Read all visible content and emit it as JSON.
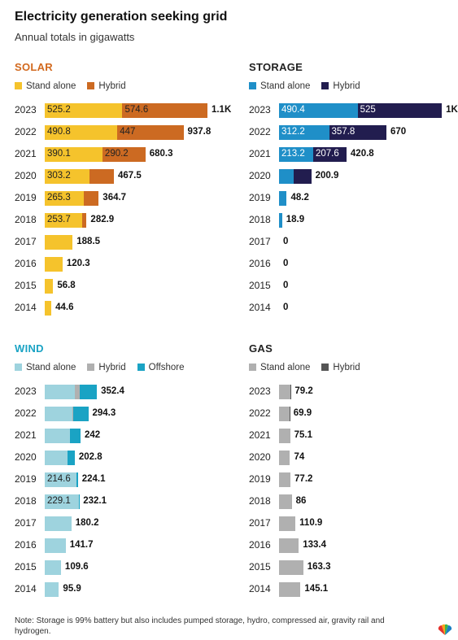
{
  "title": "Electricity generation seeking grid",
  "subtitle": "Annual totals in gigawatts",
  "note": "Note: Storage is 99% battery but also includes pumped storage, hydro, compressed air, gravity rail and hydrogen.",
  "logo_icon": "peacock-logo-icon",
  "chart_data": [
    {
      "type": "bar",
      "title": "SOLAR",
      "title_color": "#d2691e",
      "orientation": "horizontal",
      "stacked": true,
      "categories": [
        "2023",
        "2022",
        "2021",
        "2020",
        "2019",
        "2018",
        "2017",
        "2016",
        "2015",
        "2014"
      ],
      "series": [
        {
          "name": "Stand alone",
          "color": "#f5c32c",
          "values": [
            525.2,
            490.8,
            390.1,
            303.2,
            265.3,
            253.7,
            188.5,
            120.3,
            56.8,
            44.6
          ],
          "labels": [
            "525.2",
            "490.8",
            "390.1",
            "303.2",
            "265.3",
            "253.7",
            "",
            "",
            "",
            ""
          ]
        },
        {
          "name": "Hybrid",
          "color": "#cc6a22",
          "values": [
            574.6,
            447,
            290.2,
            164.3,
            99.4,
            29.2,
            0,
            0,
            0,
            0
          ],
          "labels": [
            "574.6",
            "447",
            "290.2",
            "",
            "",
            "",
            "",
            "",
            "",
            ""
          ]
        }
      ],
      "totals": [
        "1.1K",
        "937.8",
        "680.3",
        "467.5",
        "364.7",
        "282.9",
        "188.5",
        "120.3",
        "56.8",
        "44.6"
      ],
      "xlim": [
        0,
        1100
      ]
    },
    {
      "type": "bar",
      "title": "STORAGE",
      "title_color": "#222222",
      "orientation": "horizontal",
      "stacked": true,
      "categories": [
        "2023",
        "2022",
        "2021",
        "2020",
        "2019",
        "2018",
        "2017",
        "2016",
        "2015",
        "2014"
      ],
      "series": [
        {
          "name": "Stand alone",
          "color": "#1f8fc8",
          "values": [
            490.4,
            312.2,
            213.2,
            90,
            48.2,
            18.9,
            0,
            0,
            0,
            0
          ],
          "labels": [
            "490.4",
            "312.2",
            "213.2",
            "",
            "",
            "",
            "",
            "",
            "",
            ""
          ]
        },
        {
          "name": "Hybrid",
          "color": "#221d4f",
          "values": [
            525,
            357.8,
            207.6,
            110.9,
            0,
            0,
            0,
            0,
            0,
            0
          ],
          "labels": [
            "525",
            "357.8",
            "207.6",
            "",
            "",
            "",
            "",
            "",
            "",
            ""
          ]
        }
      ],
      "totals": [
        "1K",
        "670",
        "420.8",
        "200.9",
        "48.2",
        "18.9",
        "0",
        "0",
        "0",
        "0"
      ],
      "xlim": [
        0,
        1015
      ]
    },
    {
      "type": "bar",
      "title": "WIND",
      "title_color": "#1aa3c4",
      "orientation": "horizontal",
      "stacked": true,
      "categories": [
        "2023",
        "2022",
        "2021",
        "2020",
        "2019",
        "2018",
        "2017",
        "2016",
        "2015",
        "2014"
      ],
      "series": [
        {
          "name": "Stand alone",
          "color": "#9ed3de",
          "values": [
            205,
            189,
            172,
            156,
            214.6,
            229.1,
            180.2,
            141.7,
            109.6,
            95.9
          ],
          "labels": [
            "",
            "",
            "",
            "",
            "214.6",
            "229.1",
            "",
            "",
            "",
            ""
          ]
        },
        {
          "name": "Hybrid",
          "color": "#b0b0b0",
          "values": [
            32,
            6,
            0,
            0,
            0,
            0,
            0,
            0,
            0,
            0
          ],
          "labels": [
            "",
            "",
            "",
            "",
            "",
            "",
            "",
            "",
            "",
            ""
          ]
        },
        {
          "name": "Offshore",
          "color": "#1aa3c4",
          "values": [
            115.4,
            99.3,
            70,
            46.8,
            9.5,
            3,
            0,
            0,
            0,
            0
          ],
          "labels": [
            "",
            "",
            "",
            "",
            "",
            "",
            "",
            "",
            "",
            ""
          ]
        }
      ],
      "totals": [
        "352.4",
        "294.3",
        "242",
        "202.8",
        "224.1",
        "232.1",
        "180.2",
        "141.7",
        "109.6",
        "95.9"
      ],
      "xlim": [
        0,
        1100
      ]
    },
    {
      "type": "bar",
      "title": "GAS",
      "title_color": "#222222",
      "orientation": "horizontal",
      "stacked": true,
      "categories": [
        "2023",
        "2022",
        "2021",
        "2020",
        "2019",
        "2018",
        "2017",
        "2016",
        "2015",
        "2014"
      ],
      "series": [
        {
          "name": "Stand alone",
          "color": "#b0b0b0",
          "values": [
            77.2,
            68.9,
            75.1,
            74,
            77.2,
            86,
            110.9,
            133.4,
            163.3,
            145.1
          ],
          "labels": [
            "",
            "",
            "",
            "",
            "",
            "",
            "",
            "",
            "",
            ""
          ]
        },
        {
          "name": "Hybrid",
          "color": "#555555",
          "values": [
            2,
            1,
            0,
            0,
            0,
            0,
            0,
            0,
            0,
            0
          ],
          "labels": [
            "",
            "",
            "",
            "",
            "",
            "",
            "",
            "",
            "",
            ""
          ]
        }
      ],
      "totals": [
        "79.2",
        "69.9",
        "75.1",
        "74",
        "77.2",
        "86",
        "110.9",
        "133.4",
        "163.3",
        "145.1"
      ],
      "xlim": [
        0,
        1100
      ]
    }
  ]
}
